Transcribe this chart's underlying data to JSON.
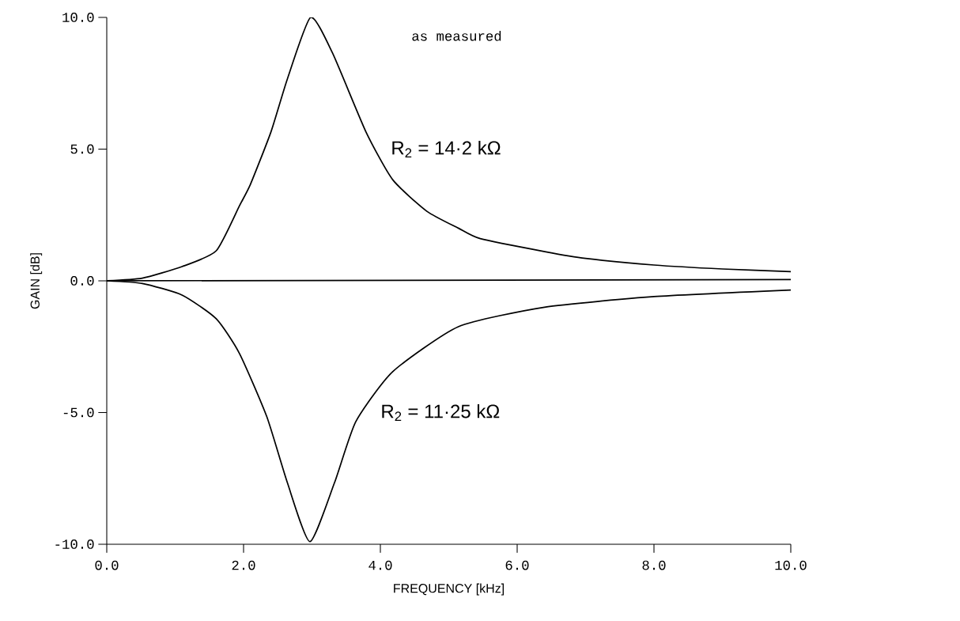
{
  "chart_data": {
    "type": "line",
    "xlabel": "FREQUENCY [kHz]",
    "ylabel": "GAIN [dB]",
    "annotations": [
      "as measured"
    ],
    "xlim": [
      0,
      10
    ],
    "ylim": [
      -10,
      10
    ],
    "xticks": [
      {
        "value": 0,
        "label": "0.0"
      },
      {
        "value": 2,
        "label": "2.0"
      },
      {
        "value": 4,
        "label": "4.0"
      },
      {
        "value": 6,
        "label": "6.0"
      },
      {
        "value": 8,
        "label": "8.0"
      },
      {
        "value": 10,
        "label": "10.0"
      }
    ],
    "yticks": [
      {
        "value": -10,
        "label": "-10.0"
      },
      {
        "value": -5,
        "label": "-5.0"
      },
      {
        "value": 0,
        "label": "0.0"
      },
      {
        "value": 5,
        "label": "5.0"
      },
      {
        "value": 10,
        "label": "10.0"
      }
    ],
    "series": [
      {
        "name": "R$_{2}$ = 14·2 kΩ",
        "color": "#000000",
        "x": [
          0,
          0.52,
          1.1,
          1.6,
          1.94,
          2.1,
          2.4,
          2.64,
          2.98,
          3.3,
          3.79,
          4.18,
          4.68,
          5.14,
          5.46,
          6.42,
          7,
          8,
          9,
          10
        ],
        "values": [
          0,
          0.1,
          0.54,
          1.14,
          2.85,
          3.66,
          5.65,
          7.66,
          10,
          8.65,
          5.65,
          3.84,
          2.64,
          2.0,
          1.6,
          1.1,
          0.85,
          0.6,
          0.45,
          0.35
        ]
      },
      {
        "color": "#000000",
        "x": [
          0,
          10
        ],
        "values": [
          0,
          0.05
        ]
      },
      {
        "name": "R$_{2}$ = 11·25 kΩ",
        "color": "#000000",
        "x": [
          0,
          0.52,
          1.1,
          1.6,
          1.94,
          2.34,
          2.64,
          2.97,
          3.33,
          3.64,
          4.18,
          5.14,
          6.4,
          8,
          10
        ],
        "values": [
          0,
          -0.1,
          -0.54,
          -1.44,
          -2.76,
          -5.16,
          -7.66,
          -9.9,
          -7.66,
          -5.35,
          -3.45,
          -1.74,
          -1.0,
          -0.6,
          -0.35
        ]
      }
    ]
  }
}
